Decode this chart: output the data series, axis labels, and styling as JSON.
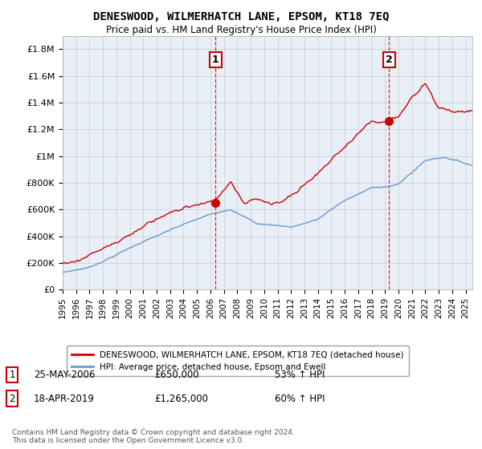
{
  "title": "DENESWOOD, WILMERHATCH LANE, EPSOM, KT18 7EQ",
  "subtitle": "Price paid vs. HM Land Registry's House Price Index (HPI)",
  "ylabel_ticks": [
    "£0",
    "£200K",
    "£400K",
    "£600K",
    "£800K",
    "£1M",
    "£1.2M",
    "£1.4M",
    "£1.6M",
    "£1.8M"
  ],
  "ytick_values": [
    0,
    200000,
    400000,
    600000,
    800000,
    1000000,
    1200000,
    1400000,
    1600000,
    1800000
  ],
  "ylim": [
    0,
    1900000
  ],
  "xlim_start": 1995.0,
  "xlim_end": 2025.5,
  "red_color": "#cc0000",
  "blue_color": "#6699cc",
  "blue_fill_alpha": 0.15,
  "annotation1_label": "1",
  "annotation2_label": "2",
  "vline1_x": 2006.38,
  "vline2_x": 2019.29,
  "marker1_x": 2006.38,
  "marker1_y": 650000,
  "marker2_x": 2019.29,
  "marker2_y": 1265000,
  "legend_line1": "DENESWOOD, WILMERHATCH LANE, EPSOM, KT18 7EQ (detached house)",
  "legend_line2": "HPI: Average price, detached house, Epsom and Ewell",
  "table_row1_num": "1",
  "table_row1_date": "25-MAY-2006",
  "table_row1_price": "£650,000",
  "table_row1_hpi": "53% ↑ HPI",
  "table_row2_num": "2",
  "table_row2_date": "18-APR-2019",
  "table_row2_price": "£1,265,000",
  "table_row2_hpi": "60% ↑ HPI",
  "footer": "Contains HM Land Registry data © Crown copyright and database right 2024.\nThis data is licensed under the Open Government Licence v3.0.",
  "background_color": "#ffffff",
  "grid_color": "#cccccc"
}
